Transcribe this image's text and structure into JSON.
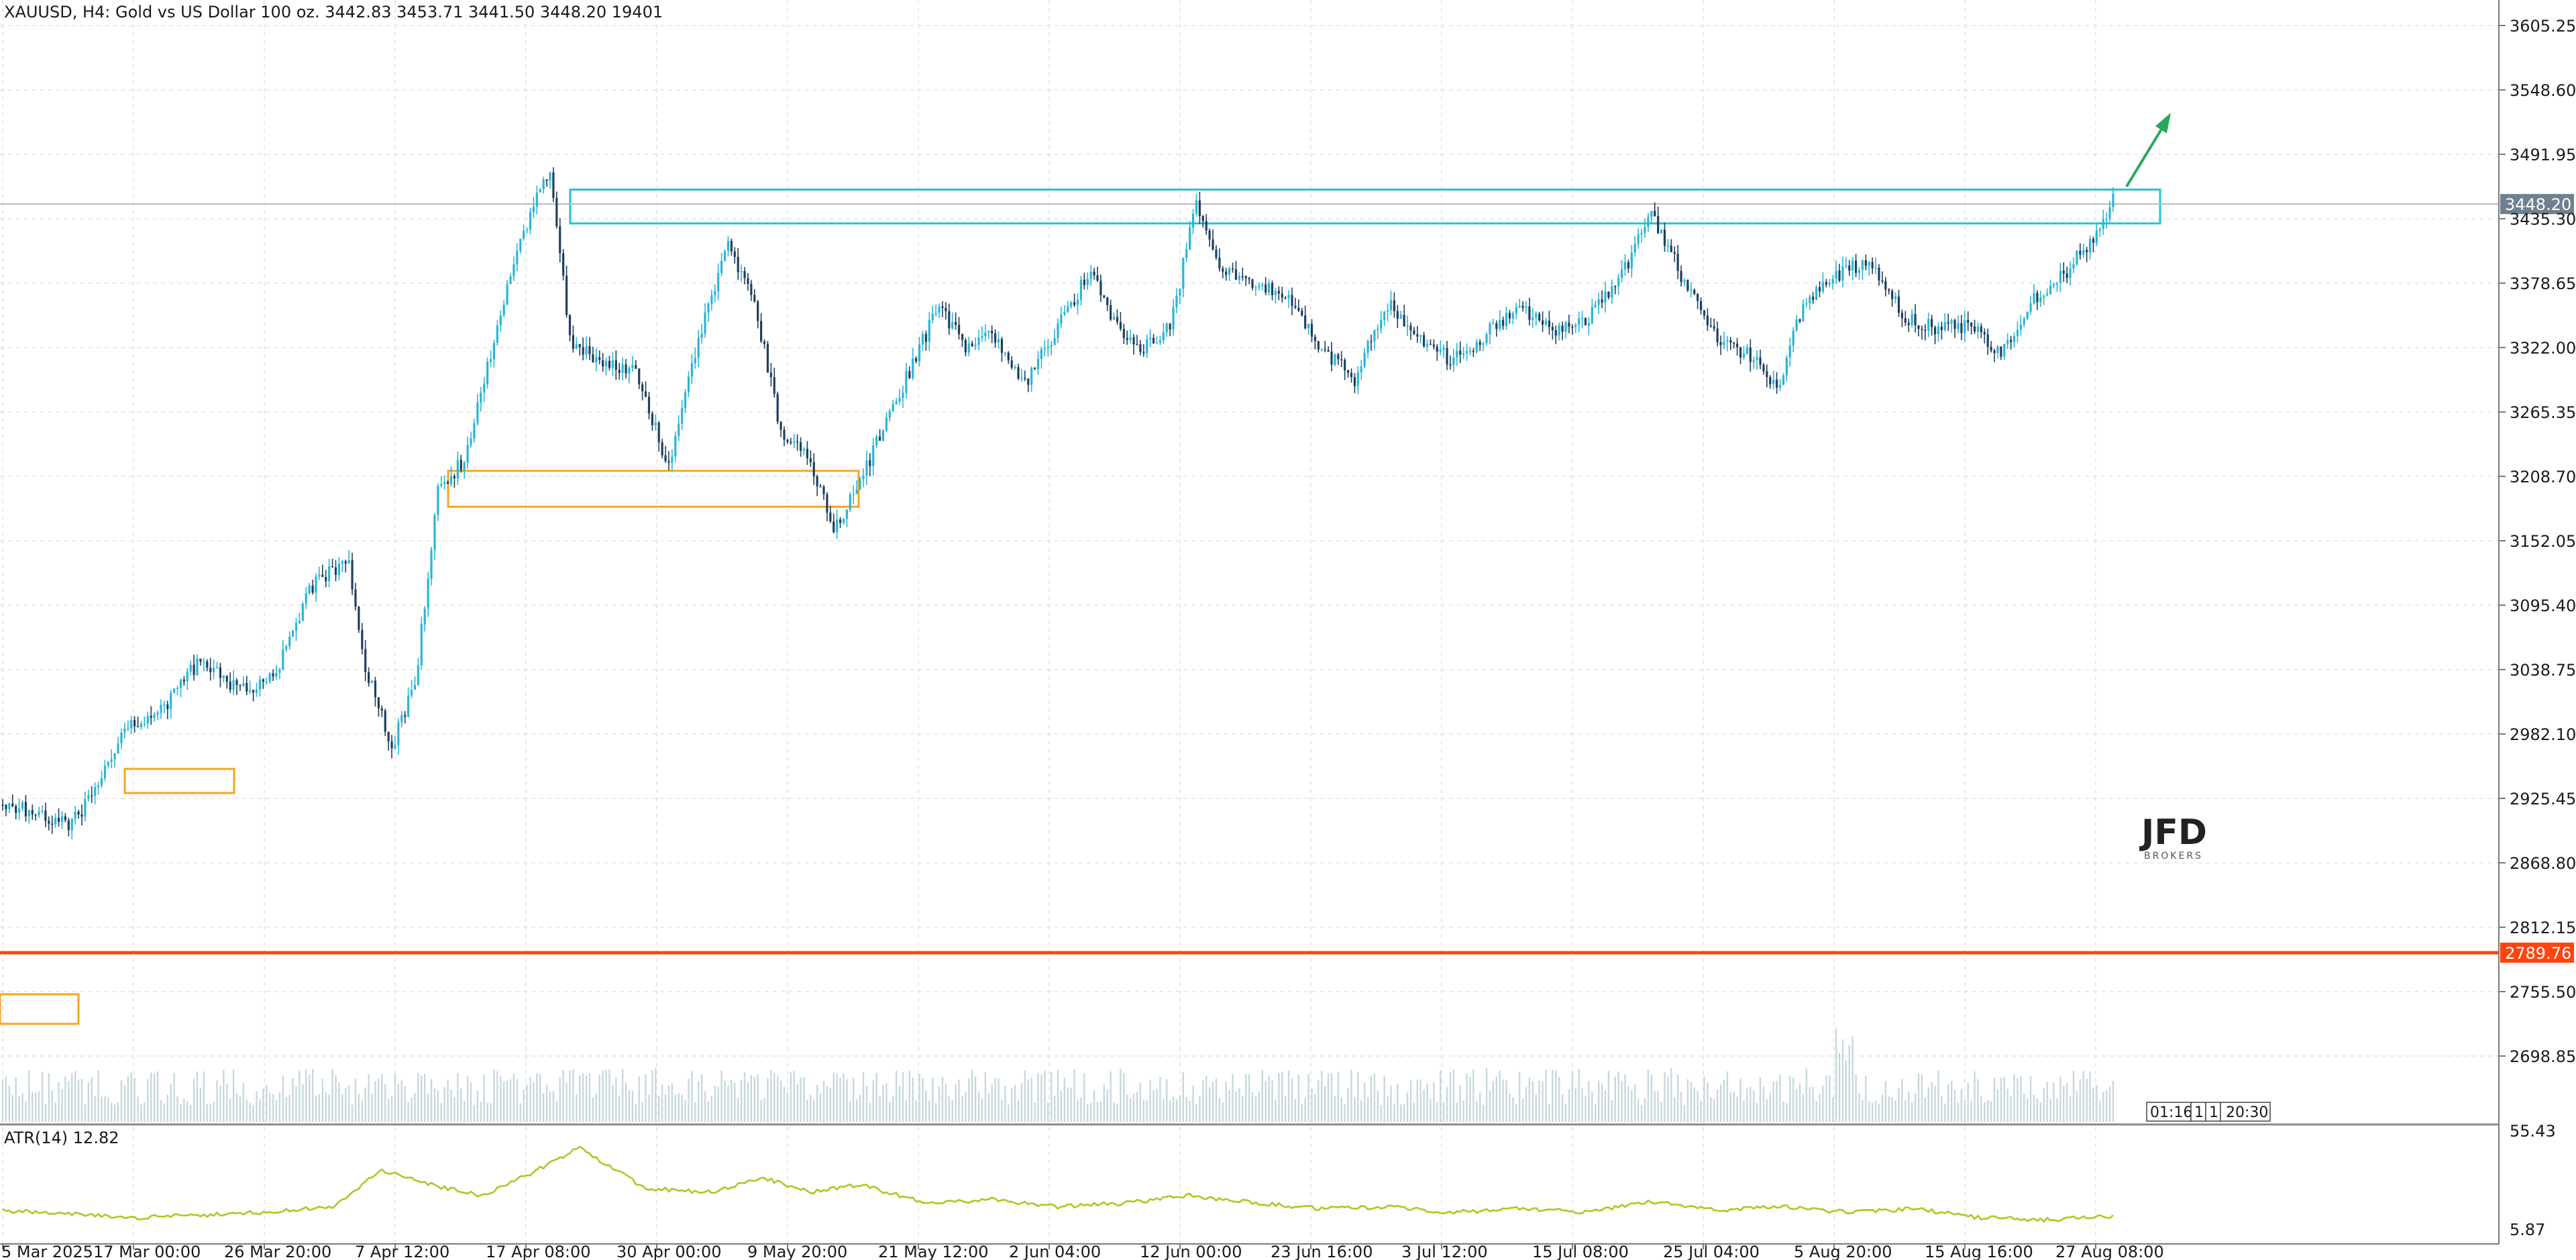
{
  "header": {
    "symbol_line": "XAUUSD, H4:  Gold vs US Dollar 100 oz.  3442.83 3453.71 3441.50 3448.20  19401"
  },
  "logo": {
    "text": "JFD",
    "sub": "BROKERS"
  },
  "indicator": {
    "label": "ATR(14) 12.82",
    "axis_ticks": [
      "55.43",
      "5.87"
    ]
  },
  "time_stamps": [
    "01:16",
    "1",
    "1",
    "20:30"
  ],
  "colors": {
    "bull": "#29b6d6",
    "bear": "#1f3f5f",
    "volume": "#c7d8dc",
    "atr": "#b4c41c",
    "resistance": "#23c3d0",
    "support": "#f5a623",
    "red_level": "#ff4411",
    "arrow": "#2aa85a",
    "grid": "#e2e2e2"
  },
  "chart_data": {
    "type": "candlestick",
    "title": "",
    "xlabel": "",
    "ylabel": "",
    "ylim": [
      2755.5,
      3605.25
    ],
    "y_ticks": [
      "3605.25",
      "3548.60",
      "3491.95",
      "3435.30",
      "3378.65",
      "3322.00",
      "3265.35",
      "3208.70",
      "3152.05",
      "3095.40",
      "3038.75",
      "2982.10",
      "2925.45",
      "2868.80",
      "2812.15",
      "2755.50",
      "2698.85"
    ],
    "x_ticks": [
      "5 Mar 2025",
      "17 Mar 00:00",
      "26 Mar 20:00",
      "7 Apr 12:00",
      "17 Apr 08:00",
      "30 Apr 00:00",
      "9 May 20:00",
      "21 May 12:00",
      "2 Jun 04:00",
      "12 Jun 00:00",
      "23 Jun 16:00",
      "3 Jul 12:00",
      "15 Jul 08:00",
      "25 Jul 04:00",
      "5 Aug 20:00",
      "15 Aug 16:00",
      "27 Aug 08:00"
    ],
    "close_path": [
      {
        "i": 0,
        "price": 2920
      },
      {
        "i": 12,
        "price": 2912
      },
      {
        "i": 20,
        "price": 2900
      },
      {
        "i": 28,
        "price": 2930
      },
      {
        "i": 38,
        "price": 2990
      },
      {
        "i": 48,
        "price": 3002
      },
      {
        "i": 60,
        "price": 3048
      },
      {
        "i": 72,
        "price": 3020
      },
      {
        "i": 82,
        "price": 3030
      },
      {
        "i": 95,
        "price": 3120
      },
      {
        "i": 105,
        "price": 3130
      },
      {
        "i": 110,
        "price": 3040
      },
      {
        "i": 118,
        "price": 2970
      },
      {
        "i": 125,
        "price": 3025
      },
      {
        "i": 132,
        "price": 3195
      },
      {
        "i": 140,
        "price": 3225
      },
      {
        "i": 150,
        "price": 3340
      },
      {
        "i": 158,
        "price": 3425
      },
      {
        "i": 166,
        "price": 3480
      },
      {
        "i": 172,
        "price": 3330
      },
      {
        "i": 180,
        "price": 3310
      },
      {
        "i": 192,
        "price": 3300
      },
      {
        "i": 202,
        "price": 3215
      },
      {
        "i": 212,
        "price": 3340
      },
      {
        "i": 220,
        "price": 3410
      },
      {
        "i": 228,
        "price": 3360
      },
      {
        "i": 236,
        "price": 3250
      },
      {
        "i": 244,
        "price": 3230
      },
      {
        "i": 252,
        "price": 3165
      },
      {
        "i": 258,
        "price": 3190
      },
      {
        "i": 266,
        "price": 3245
      },
      {
        "i": 274,
        "price": 3295
      },
      {
        "i": 284,
        "price": 3360
      },
      {
        "i": 292,
        "price": 3320
      },
      {
        "i": 300,
        "price": 3335
      },
      {
        "i": 310,
        "price": 3290
      },
      {
        "i": 320,
        "price": 3340
      },
      {
        "i": 330,
        "price": 3390
      },
      {
        "i": 338,
        "price": 3340
      },
      {
        "i": 346,
        "price": 3320
      },
      {
        "i": 354,
        "price": 3340
      },
      {
        "i": 362,
        "price": 3448
      },
      {
        "i": 370,
        "price": 3390
      },
      {
        "i": 380,
        "price": 3380
      },
      {
        "i": 390,
        "price": 3370
      },
      {
        "i": 400,
        "price": 3320
      },
      {
        "i": 410,
        "price": 3295
      },
      {
        "i": 420,
        "price": 3360
      },
      {
        "i": 430,
        "price": 3330
      },
      {
        "i": 440,
        "price": 3310
      },
      {
        "i": 450,
        "price": 3335
      },
      {
        "i": 460,
        "price": 3360
      },
      {
        "i": 470,
        "price": 3335
      },
      {
        "i": 480,
        "price": 3345
      },
      {
        "i": 490,
        "price": 3380
      },
      {
        "i": 500,
        "price": 3440
      },
      {
        "i": 510,
        "price": 3380
      },
      {
        "i": 520,
        "price": 3330
      },
      {
        "i": 530,
        "price": 3315
      },
      {
        "i": 538,
        "price": 3285
      },
      {
        "i": 546,
        "price": 3360
      },
      {
        "i": 556,
        "price": 3385
      },
      {
        "i": 566,
        "price": 3400
      },
      {
        "i": 576,
        "price": 3350
      },
      {
        "i": 586,
        "price": 3340
      },
      {
        "i": 596,
        "price": 3340
      },
      {
        "i": 606,
        "price": 3320
      },
      {
        "i": 616,
        "price": 3365
      },
      {
        "i": 626,
        "price": 3390
      },
      {
        "i": 634,
        "price": 3420
      },
      {
        "i": 640,
        "price": 3453
      }
    ],
    "atr_path": [
      {
        "i": 0,
        "value": 16
      },
      {
        "i": 40,
        "value": 12
      },
      {
        "i": 80,
        "value": 15
      },
      {
        "i": 100,
        "value": 18
      },
      {
        "i": 115,
        "value": 38
      },
      {
        "i": 130,
        "value": 30
      },
      {
        "i": 145,
        "value": 24
      },
      {
        "i": 160,
        "value": 36
      },
      {
        "i": 175,
        "value": 50
      },
      {
        "i": 195,
        "value": 28
      },
      {
        "i": 215,
        "value": 26
      },
      {
        "i": 230,
        "value": 34
      },
      {
        "i": 245,
        "value": 26
      },
      {
        "i": 260,
        "value": 30
      },
      {
        "i": 280,
        "value": 20
      },
      {
        "i": 300,
        "value": 22
      },
      {
        "i": 320,
        "value": 18
      },
      {
        "i": 340,
        "value": 20
      },
      {
        "i": 360,
        "value": 24
      },
      {
        "i": 380,
        "value": 20
      },
      {
        "i": 400,
        "value": 17
      },
      {
        "i": 420,
        "value": 18
      },
      {
        "i": 440,
        "value": 15
      },
      {
        "i": 460,
        "value": 17
      },
      {
        "i": 480,
        "value": 15
      },
      {
        "i": 500,
        "value": 21
      },
      {
        "i": 520,
        "value": 16
      },
      {
        "i": 540,
        "value": 18
      },
      {
        "i": 560,
        "value": 15
      },
      {
        "i": 580,
        "value": 17
      },
      {
        "i": 600,
        "value": 12
      },
      {
        "i": 620,
        "value": 11
      },
      {
        "i": 640,
        "value": 12.8
      }
    ],
    "bars_total": 640,
    "last_price": "3448.20",
    "resistance_zone": [
      3430,
      3455
    ],
    "support_zone": [
      3182,
      3210
    ],
    "red_level": "2789.76",
    "annotations": [
      "3448.20",
      "2789.76"
    ]
  }
}
